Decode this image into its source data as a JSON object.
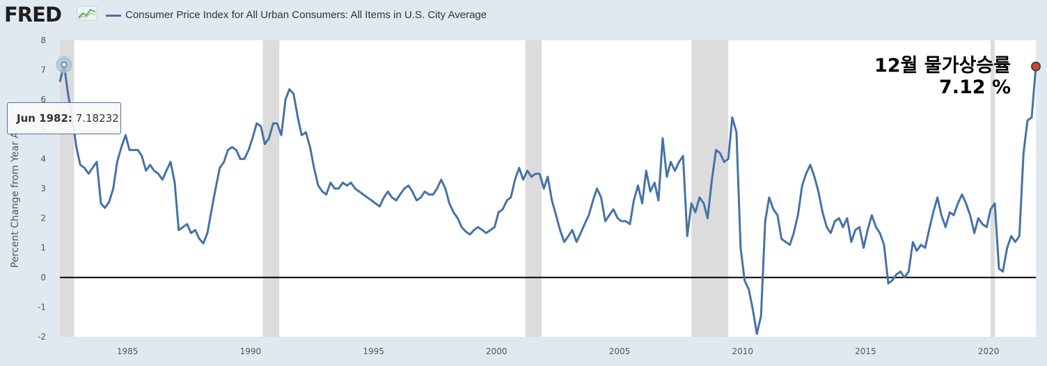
{
  "header": {
    "logo_text": "FRED",
    "logo_icon": "chart-line-icon",
    "legend_label": "Consumer Price Index for All Urban Consumers: All Items in U.S. City Average"
  },
  "tooltip": {
    "date": "Jun 1982:",
    "value": "7.18232"
  },
  "annotation": {
    "line1": "12월 물가상승률",
    "line2": "7.12 %"
  },
  "colors": {
    "series": "#4572a7",
    "recession": "#dcdcdc",
    "background": "#e1e9f0",
    "plot": "#ffffff",
    "zero_line": "#000000",
    "last_point": "#e0412e"
  },
  "chart_data": {
    "type": "line",
    "ylabel": "Percent Change from Year A",
    "ylim": [
      -2,
      8
    ],
    "xlim": [
      1982.25,
      2021.92
    ],
    "y_ticks": [
      "-2",
      "-1",
      "0",
      "1",
      "2",
      "3",
      "4",
      "5",
      "6",
      "7",
      "8"
    ],
    "x_ticks": [
      "1985",
      "1990",
      "1995",
      "2000",
      "2005",
      "2010",
      "2015",
      "2020"
    ],
    "grid": false,
    "zero_line": true,
    "recessions": [
      [
        1982.25,
        1982.83
      ],
      [
        1990.5,
        1991.17
      ],
      [
        2001.17,
        2001.83
      ],
      [
        2007.92,
        2009.42
      ],
      [
        2020.08,
        2020.25
      ]
    ],
    "series": [
      {
        "name": "Consumer Price Index for All Urban Consumers: All Items in U.S. City Average",
        "points": [
          [
            1982.25,
            6.6
          ],
          [
            1982.42,
            7.18
          ],
          [
            1982.58,
            6.2
          ],
          [
            1982.75,
            5.4
          ],
          [
            1982.92,
            4.4
          ],
          [
            1983.08,
            3.8
          ],
          [
            1983.25,
            3.7
          ],
          [
            1983.42,
            3.5
          ],
          [
            1983.58,
            3.7
          ],
          [
            1983.75,
            3.9
          ],
          [
            1983.92,
            2.5
          ],
          [
            1984.08,
            2.35
          ],
          [
            1984.25,
            2.55
          ],
          [
            1984.42,
            3.0
          ],
          [
            1984.58,
            3.9
          ],
          [
            1984.75,
            4.4
          ],
          [
            1984.92,
            4.8
          ],
          [
            1985.08,
            4.3
          ],
          [
            1985.25,
            4.3
          ],
          [
            1985.42,
            4.3
          ],
          [
            1985.58,
            4.1
          ],
          [
            1985.75,
            3.6
          ],
          [
            1985.92,
            3.8
          ],
          [
            1986.08,
            3.6
          ],
          [
            1986.25,
            3.5
          ],
          [
            1986.42,
            3.3
          ],
          [
            1986.58,
            3.6
          ],
          [
            1986.75,
            3.9
          ],
          [
            1986.92,
            3.2
          ],
          [
            1987.08,
            1.6
          ],
          [
            1987.25,
            1.7
          ],
          [
            1987.42,
            1.8
          ],
          [
            1987.58,
            1.5
          ],
          [
            1987.75,
            1.6
          ],
          [
            1987.92,
            1.3
          ],
          [
            1988.08,
            1.15
          ],
          [
            1988.25,
            1.5
          ],
          [
            1988.42,
            2.3
          ],
          [
            1988.58,
            3.0
          ],
          [
            1988.75,
            3.7
          ],
          [
            1988.92,
            3.9
          ],
          [
            1989.08,
            4.3
          ],
          [
            1989.25,
            4.4
          ],
          [
            1989.42,
            4.3
          ],
          [
            1989.58,
            4.0
          ],
          [
            1989.75,
            4.0
          ],
          [
            1989.92,
            4.3
          ],
          [
            1990.08,
            4.7
          ],
          [
            1990.25,
            5.2
          ],
          [
            1990.42,
            5.1
          ],
          [
            1990.58,
            4.5
          ],
          [
            1990.75,
            4.7
          ],
          [
            1990.92,
            5.2
          ],
          [
            1991.08,
            5.2
          ],
          [
            1991.25,
            4.8
          ],
          [
            1991.42,
            6.0
          ],
          [
            1991.58,
            6.35
          ],
          [
            1991.75,
            6.2
          ],
          [
            1991.92,
            5.4
          ],
          [
            1992.08,
            4.8
          ],
          [
            1992.25,
            4.9
          ],
          [
            1992.42,
            4.4
          ],
          [
            1992.58,
            3.7
          ],
          [
            1992.75,
            3.1
          ],
          [
            1992.92,
            2.9
          ],
          [
            1993.08,
            2.8
          ],
          [
            1993.25,
            3.2
          ],
          [
            1993.42,
            3.0
          ],
          [
            1993.58,
            3.0
          ],
          [
            1993.75,
            3.2
          ],
          [
            1993.92,
            3.1
          ],
          [
            1994.08,
            3.2
          ],
          [
            1994.25,
            3.0
          ],
          [
            1994.42,
            2.9
          ],
          [
            1994.58,
            2.8
          ],
          [
            1994.75,
            2.7
          ],
          [
            1994.92,
            2.6
          ],
          [
            1995.08,
            2.5
          ],
          [
            1995.25,
            2.4
          ],
          [
            1995.42,
            2.7
          ],
          [
            1995.58,
            2.9
          ],
          [
            1995.75,
            2.7
          ],
          [
            1995.92,
            2.6
          ],
          [
            1996.08,
            2.8
          ],
          [
            1996.25,
            3.0
          ],
          [
            1996.42,
            3.1
          ],
          [
            1996.58,
            2.9
          ],
          [
            1996.75,
            2.6
          ],
          [
            1996.92,
            2.7
          ],
          [
            1997.08,
            2.9
          ],
          [
            1997.25,
            2.8
          ],
          [
            1997.42,
            2.8
          ],
          [
            1997.58,
            3.0
          ],
          [
            1997.75,
            3.3
          ],
          [
            1997.92,
            3.0
          ],
          [
            1998.08,
            2.5
          ],
          [
            1998.25,
            2.2
          ],
          [
            1998.42,
            2.0
          ],
          [
            1998.58,
            1.7
          ],
          [
            1998.75,
            1.55
          ],
          [
            1998.92,
            1.45
          ],
          [
            1999.08,
            1.6
          ],
          [
            1999.25,
            1.7
          ],
          [
            1999.42,
            1.6
          ],
          [
            1999.58,
            1.5
          ],
          [
            1999.75,
            1.6
          ],
          [
            1999.92,
            1.7
          ],
          [
            2000.08,
            2.2
          ],
          [
            2000.25,
            2.3
          ],
          [
            2000.42,
            2.6
          ],
          [
            2000.58,
            2.7
          ],
          [
            2000.75,
            3.3
          ],
          [
            2000.92,
            3.7
          ],
          [
            2001.08,
            3.3
          ],
          [
            2001.25,
            3.6
          ],
          [
            2001.42,
            3.4
          ],
          [
            2001.58,
            3.5
          ],
          [
            2001.75,
            3.5
          ],
          [
            2001.92,
            3.0
          ],
          [
            2002.08,
            3.4
          ],
          [
            2002.25,
            2.6
          ],
          [
            2002.42,
            2.1
          ],
          [
            2002.58,
            1.6
          ],
          [
            2002.75,
            1.2
          ],
          [
            2002.92,
            1.4
          ],
          [
            2003.08,
            1.6
          ],
          [
            2003.25,
            1.2
          ],
          [
            2003.42,
            1.5
          ],
          [
            2003.58,
            1.8
          ],
          [
            2003.75,
            2.1
          ],
          [
            2003.92,
            2.6
          ],
          [
            2004.08,
            3.0
          ],
          [
            2004.25,
            2.7
          ],
          [
            2004.42,
            1.9
          ],
          [
            2004.58,
            2.1
          ],
          [
            2004.75,
            2.3
          ],
          [
            2004.92,
            2.0
          ],
          [
            2005.08,
            1.9
          ],
          [
            2005.25,
            1.9
          ],
          [
            2005.42,
            1.8
          ],
          [
            2005.58,
            2.6
          ],
          [
            2005.75,
            3.1
          ],
          [
            2005.92,
            2.5
          ],
          [
            2006.08,
            3.6
          ],
          [
            2006.25,
            2.9
          ],
          [
            2006.42,
            3.2
          ],
          [
            2006.58,
            2.6
          ],
          [
            2006.75,
            4.7
          ],
          [
            2006.92,
            3.4
          ],
          [
            2007.08,
            3.9
          ],
          [
            2007.25,
            3.6
          ],
          [
            2007.42,
            3.9
          ],
          [
            2007.58,
            4.1
          ],
          [
            2007.75,
            1.4
          ],
          [
            2007.92,
            2.5
          ],
          [
            2008.08,
            2.2
          ],
          [
            2008.25,
            2.7
          ],
          [
            2008.42,
            2.5
          ],
          [
            2008.58,
            2.0
          ],
          [
            2008.75,
            3.3
          ],
          [
            2008.92,
            4.3
          ],
          [
            2009.08,
            4.2
          ],
          [
            2009.25,
            3.9
          ],
          [
            2009.42,
            4.0
          ],
          [
            2009.58,
            5.4
          ],
          [
            2009.75,
            4.9
          ],
          [
            2009.92,
            1.0
          ],
          [
            2010.08,
            -0.1
          ],
          [
            2010.25,
            -0.4
          ],
          [
            2010.42,
            -1.1
          ],
          [
            2010.58,
            -1.9
          ],
          [
            2010.75,
            -1.3
          ],
          [
            2010.92,
            1.9
          ],
          [
            2011.08,
            2.7
          ],
          [
            2011.25,
            2.3
          ],
          [
            2011.42,
            2.1
          ],
          [
            2011.58,
            1.3
          ],
          [
            2011.75,
            1.2
          ],
          [
            2011.92,
            1.1
          ],
          [
            2012.08,
            1.5
          ],
          [
            2012.25,
            2.1
          ],
          [
            2012.42,
            3.1
          ],
          [
            2012.58,
            3.5
          ],
          [
            2012.75,
            3.8
          ],
          [
            2012.92,
            3.4
          ],
          [
            2013.08,
            2.9
          ],
          [
            2013.25,
            2.2
          ],
          [
            2013.42,
            1.7
          ],
          [
            2013.58,
            1.5
          ],
          [
            2013.75,
            1.9
          ],
          [
            2013.92,
            2.0
          ],
          [
            2014.08,
            1.7
          ],
          [
            2014.25,
            2.0
          ],
          [
            2014.42,
            1.2
          ],
          [
            2014.58,
            1.6
          ],
          [
            2014.75,
            1.7
          ],
          [
            2014.92,
            1.0
          ],
          [
            2015.08,
            1.6
          ],
          [
            2015.25,
            2.1
          ],
          [
            2015.42,
            1.7
          ],
          [
            2015.58,
            1.5
          ],
          [
            2015.75,
            1.1
          ],
          [
            2015.92,
            -0.2
          ],
          [
            2016.08,
            -0.1
          ],
          [
            2016.25,
            0.1
          ],
          [
            2016.42,
            0.2
          ],
          [
            2016.58,
            0.0
          ],
          [
            2016.75,
            0.2
          ],
          [
            2016.92,
            1.2
          ],
          [
            2017.08,
            0.9
          ],
          [
            2017.25,
            1.1
          ],
          [
            2017.42,
            1.0
          ],
          [
            2017.58,
            1.6
          ],
          [
            2017.75,
            2.2
          ],
          [
            2017.92,
            2.7
          ],
          [
            2018.08,
            2.1
          ],
          [
            2018.25,
            1.7
          ],
          [
            2018.42,
            2.2
          ],
          [
            2018.58,
            2.1
          ],
          [
            2018.75,
            2.5
          ],
          [
            2018.92,
            2.8
          ],
          [
            2019.08,
            2.5
          ],
          [
            2019.25,
            2.1
          ],
          [
            2019.42,
            1.5
          ],
          [
            2019.58,
            2.0
          ],
          [
            2019.75,
            1.8
          ],
          [
            2019.92,
            1.7
          ],
          [
            2020.08,
            2.3
          ],
          [
            2020.25,
            2.5
          ],
          [
            2020.42,
            0.3
          ],
          [
            2020.58,
            0.2
          ],
          [
            2020.75,
            1.0
          ],
          [
            2020.92,
            1.4
          ],
          [
            2021.08,
            1.2
          ],
          [
            2021.25,
            1.4
          ],
          [
            2021.42,
            4.2
          ],
          [
            2021.58,
            5.3
          ],
          [
            2021.75,
            5.4
          ],
          [
            2021.92,
            7.12
          ]
        ]
      }
    ],
    "highlight_point": {
      "x": 1982.42,
      "y": 7.18
    },
    "last_point": {
      "x": 2021.92,
      "y": 7.12
    }
  }
}
